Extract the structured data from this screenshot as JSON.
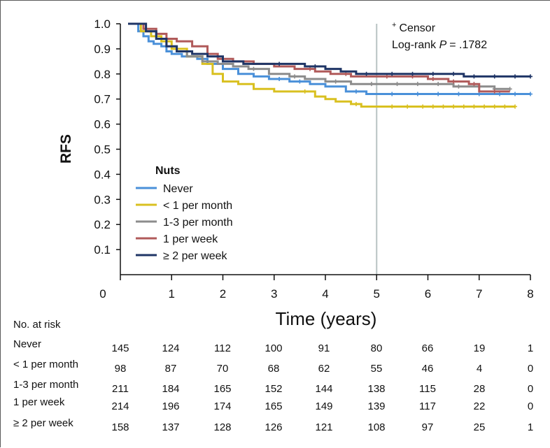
{
  "chart_data": {
    "type": "line",
    "subtype": "kaplan-meier",
    "title": "",
    "ylabel": "RFS",
    "xlabel": "Time (years)",
    "ylim": [
      0,
      1.0
    ],
    "xlim": [
      0,
      8
    ],
    "y_ticks": [
      "1.0",
      "0.9",
      "0.8",
      "0.7",
      "0.6",
      "0.5",
      "0.4",
      "0.3",
      "0.2",
      "0.1"
    ],
    "x_ticks": [
      "0",
      "1",
      "2",
      "3",
      "4",
      "5",
      "6",
      "7",
      "8"
    ],
    "reference_x": 5,
    "legend_title": "Nuts",
    "legend_location": "lower-left",
    "annotation": {
      "censor_symbol": "+",
      "censor_label": "Censor",
      "logrank_prefix": "Log-rank ",
      "logrank_p": "P",
      "logrank_value": "= .1782"
    },
    "series": [
      {
        "name": "Never",
        "color": "#4a90d9",
        "x": [
          0.15,
          0.35,
          0.45,
          0.55,
          0.65,
          0.8,
          0.9,
          1.0,
          1.2,
          1.5,
          1.7,
          2.0,
          2.3,
          2.6,
          2.9,
          3.3,
          3.7,
          4.0,
          4.4,
          4.8,
          5.0,
          5.5,
          6.0,
          6.5,
          7.0,
          7.5,
          8.0
        ],
        "y": [
          1.0,
          0.97,
          0.95,
          0.93,
          0.92,
          0.91,
          0.89,
          0.88,
          0.87,
          0.86,
          0.84,
          0.82,
          0.8,
          0.79,
          0.78,
          0.77,
          0.76,
          0.75,
          0.73,
          0.72,
          0.72,
          0.72,
          0.72,
          0.72,
          0.72,
          0.72,
          0.72
        ],
        "censored_x": [
          3.1,
          3.5,
          4.6,
          5.3,
          5.8,
          6.2,
          6.6,
          7.0,
          7.4,
          7.7,
          8.0
        ]
      },
      {
        "name": "< 1 per month",
        "color": "#d9c020",
        "x": [
          0.15,
          0.4,
          0.6,
          0.8,
          1.0,
          1.3,
          1.6,
          1.8,
          2.0,
          2.3,
          2.6,
          3.0,
          3.4,
          3.8,
          4.0,
          4.2,
          4.5,
          4.7,
          5.0,
          5.5,
          6.0,
          6.5,
          7.0,
          7.7
        ],
        "y": [
          1.0,
          0.97,
          0.95,
          0.93,
          0.9,
          0.87,
          0.84,
          0.8,
          0.77,
          0.76,
          0.74,
          0.73,
          0.73,
          0.71,
          0.7,
          0.69,
          0.68,
          0.67,
          0.67,
          0.67,
          0.67,
          0.67,
          0.67,
          0.67
        ],
        "censored_x": [
          3.6,
          4.6,
          5.3,
          5.6,
          5.9,
          6.1,
          6.3,
          6.5,
          6.7,
          6.9,
          7.1,
          7.3,
          7.5,
          7.7
        ]
      },
      {
        "name": "1-3 per month",
        "color": "#8c8c8c",
        "x": [
          0.15,
          0.5,
          0.7,
          0.9,
          1.1,
          1.3,
          1.6,
          1.9,
          2.2,
          2.5,
          2.9,
          3.3,
          3.6,
          4.0,
          4.5,
          5.0,
          5.5,
          6.0,
          6.5,
          7.0,
          7.3,
          7.6
        ],
        "y": [
          1.0,
          0.97,
          0.94,
          0.91,
          0.89,
          0.87,
          0.85,
          0.84,
          0.83,
          0.82,
          0.8,
          0.79,
          0.78,
          0.77,
          0.76,
          0.76,
          0.76,
          0.76,
          0.75,
          0.75,
          0.74,
          0.74
        ],
        "censored_x": [
          2.6,
          3.4,
          4.2,
          4.9,
          5.4,
          5.8,
          6.2,
          6.6,
          7.0,
          7.3,
          7.6
        ]
      },
      {
        "name": "1 per week",
        "color": "#b05a5a",
        "x": [
          0.15,
          0.45,
          0.7,
          0.9,
          1.1,
          1.4,
          1.7,
          1.9,
          2.2,
          2.6,
          3.0,
          3.4,
          3.8,
          4.1,
          4.5,
          5.0,
          5.5,
          6.0,
          6.4,
          6.8,
          7.0,
          7.6
        ],
        "y": [
          1.0,
          0.98,
          0.96,
          0.94,
          0.93,
          0.91,
          0.88,
          0.86,
          0.85,
          0.84,
          0.83,
          0.82,
          0.81,
          0.8,
          0.79,
          0.79,
          0.79,
          0.78,
          0.77,
          0.76,
          0.73,
          0.73
        ],
        "censored_x": [
          3.7,
          4.4,
          5.2,
          5.7,
          6.1,
          6.5,
          6.9,
          7.3
        ]
      },
      {
        "name": "≥ 2 per week",
        "color": "#1f3566",
        "x": [
          0.15,
          0.5,
          0.7,
          0.9,
          1.1,
          1.4,
          1.7,
          2.0,
          2.4,
          3.0,
          3.6,
          4.0,
          4.3,
          4.6,
          5.0,
          5.5,
          6.0,
          6.5,
          6.7,
          7.0,
          7.5,
          8.0
        ],
        "y": [
          1.0,
          0.97,
          0.94,
          0.91,
          0.89,
          0.88,
          0.87,
          0.85,
          0.84,
          0.84,
          0.83,
          0.82,
          0.81,
          0.8,
          0.8,
          0.8,
          0.8,
          0.8,
          0.79,
          0.79,
          0.79,
          0.79
        ],
        "censored_x": [
          3.1,
          3.8,
          4.8,
          5.3,
          5.7,
          6.1,
          6.5,
          6.9,
          7.3,
          7.7,
          8.0
        ]
      }
    ],
    "risk_table": {
      "title": "No. at risk",
      "time_points": [
        0,
        1,
        2,
        3,
        4,
        5,
        6,
        7,
        8
      ],
      "rows": [
        {
          "label": "Never",
          "values": [
            "145",
            "124",
            "112",
            "100",
            "91",
            "80",
            "66",
            "19",
            "1"
          ]
        },
        {
          "label": "< 1 per month",
          "values": [
            "98",
            "87",
            "70",
            "68",
            "62",
            "55",
            "46",
            "4",
            "0"
          ]
        },
        {
          "label": "1-3 per month",
          "values": [
            "211",
            "184",
            "165",
            "152",
            "144",
            "138",
            "115",
            "28",
            "0"
          ]
        },
        {
          "label": "1 per week",
          "values": [
            "214",
            "196",
            "174",
            "165",
            "149",
            "139",
            "117",
            "22",
            "0"
          ]
        },
        {
          "label": "≥ 2 per week",
          "values": [
            "158",
            "137",
            "128",
            "126",
            "121",
            "108",
            "97",
            "25",
            "1"
          ]
        }
      ]
    }
  }
}
